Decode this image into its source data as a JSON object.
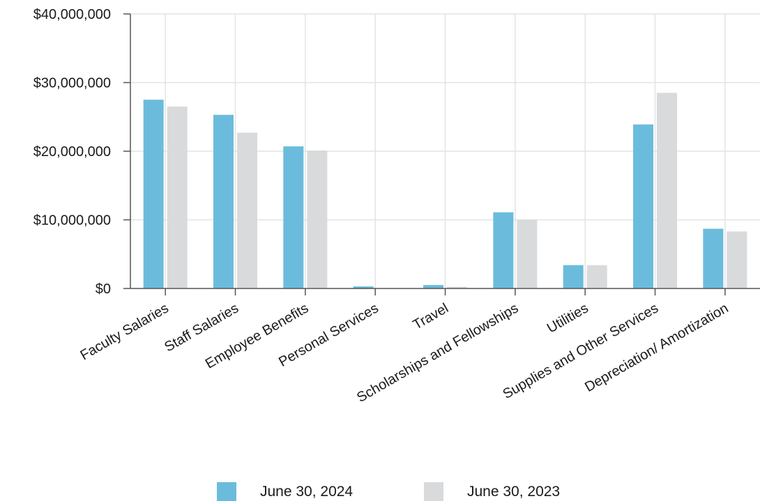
{
  "chart_data": {
    "type": "bar",
    "categories": [
      "Faculty Salaries",
      "Staff Salaries",
      "Employee Benefits",
      "Personal Services",
      "Travel",
      "Scholarships and Fellowships",
      "Utilities",
      "Supplies and Other Services",
      "Depreciation/ Amortization"
    ],
    "series": [
      {
        "name": "June 30, 2024",
        "color": "#6bbcdc",
        "values": [
          27500000,
          25300000,
          20700000,
          300000,
          500000,
          11100000,
          3400000,
          23900000,
          8700000
        ]
      },
      {
        "name": "June 30, 2023",
        "color": "#d8dadb",
        "values": [
          26500000,
          22700000,
          20100000,
          50000,
          250000,
          10000000,
          3400000,
          28500000,
          8300000
        ]
      }
    ],
    "yticks": [
      "$0",
      "$10,000,000",
      "$20,000,000",
      "$30,000,000",
      "$40,000,000"
    ],
    "ylim": [
      0,
      40000000
    ],
    "grid": true,
    "legend_position": "bottom-center"
  }
}
